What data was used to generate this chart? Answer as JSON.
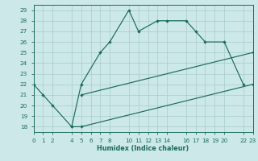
{
  "line1": {
    "x": [
      0,
      1,
      2,
      4,
      5,
      7,
      8,
      10,
      11,
      13,
      14,
      16,
      17,
      18,
      20,
      22
    ],
    "y": [
      22,
      21,
      20,
      18,
      22,
      25,
      26,
      29,
      27,
      28,
      28,
      28,
      27,
      26,
      26,
      22
    ]
  },
  "line2": {
    "x": [
      4,
      5,
      23
    ],
    "y": [
      18,
      18,
      22
    ]
  },
  "line3": {
    "x": [
      5,
      23
    ],
    "y": [
      21,
      25
    ]
  },
  "line_color": "#1a6b5e",
  "bg_color": "#cce8e8",
  "grid_color": "#a8cccc",
  "xlabel": "Humidex (Indice chaleur)",
  "xlim": [
    0,
    23
  ],
  "ylim": [
    17.5,
    29.5
  ],
  "xticks": [
    0,
    1,
    2,
    4,
    5,
    6,
    7,
    8,
    10,
    11,
    12,
    13,
    14,
    16,
    17,
    18,
    19,
    20,
    22,
    23
  ],
  "yticks": [
    18,
    19,
    20,
    21,
    22,
    23,
    24,
    25,
    26,
    27,
    28,
    29
  ],
  "xtick_labels": [
    "0",
    "1",
    "2",
    "4",
    "5",
    "6",
    "7",
    "8",
    "10",
    "11",
    "12",
    "13",
    "14",
    "16",
    "17",
    "18",
    "19",
    "20",
    "22",
    "23"
  ],
  "ytick_labels": [
    "18",
    "19",
    "20",
    "21",
    "22",
    "23",
    "24",
    "25",
    "26",
    "27",
    "28",
    "29"
  ]
}
